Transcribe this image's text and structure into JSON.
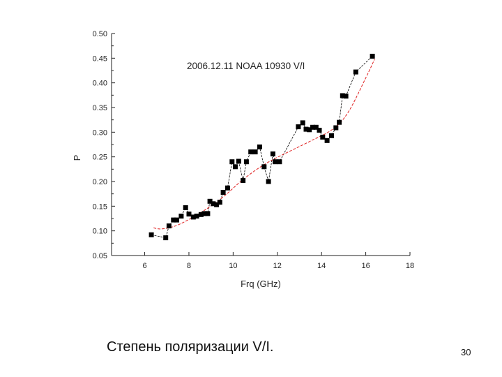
{
  "slide": {
    "caption": "Степень поляризации V/I.",
    "page_number": "30"
  },
  "chart_data": {
    "type": "scatter",
    "title": "2006.12.11 NOAA 10930 V/I",
    "xlabel": "Frq (GHz)",
    "ylabel": "P",
    "xlim": [
      4.5,
      18
    ],
    "ylim": [
      0.05,
      0.5
    ],
    "xticks": [
      "6",
      "8",
      "10",
      "12",
      "14",
      "16",
      "18"
    ],
    "yticks": [
      "0.05",
      "0.10",
      "0.15",
      "0.20",
      "0.25",
      "0.30",
      "0.35",
      "0.40",
      "0.45",
      "0.50"
    ],
    "grid": false,
    "colors": {
      "points": "#000000",
      "connect": "#000000",
      "fit": "#e02020"
    },
    "series": [
      {
        "x": [
          6.3,
          6.95,
          7.1,
          7.3,
          7.45,
          7.65,
          7.85,
          8.0,
          8.2,
          8.35,
          8.55,
          8.7,
          8.85,
          8.95,
          9.1,
          9.25,
          9.4,
          9.55,
          9.75,
          9.95,
          10.1,
          10.25,
          10.45,
          10.6,
          10.8,
          11.0,
          11.2,
          11.4,
          11.6,
          11.8,
          11.9,
          12.1,
          12.95,
          13.15,
          13.3,
          13.45,
          13.6,
          13.75,
          13.9,
          14.05,
          14.25,
          14.45,
          14.65,
          14.8,
          14.95,
          15.1,
          15.55,
          16.3
        ],
        "y": [
          0.092,
          0.086,
          0.11,
          0.122,
          0.122,
          0.13,
          0.147,
          0.134,
          0.128,
          0.13,
          0.133,
          0.135,
          0.135,
          0.16,
          0.155,
          0.153,
          0.158,
          0.178,
          0.187,
          0.24,
          0.23,
          0.241,
          0.202,
          0.24,
          0.26,
          0.26,
          0.27,
          0.23,
          0.2,
          0.256,
          0.24,
          0.24,
          0.311,
          0.319,
          0.306,
          0.305,
          0.31,
          0.31,
          0.304,
          0.29,
          0.283,
          0.293,
          0.309,
          0.32,
          0.374,
          0.373,
          0.422,
          0.454
        ]
      }
    ],
    "fit": {
      "x": [
        6.4,
        6.8,
        7.5,
        8.5,
        9.5,
        10.5,
        11.5,
        12.5,
        13.5,
        14.5,
        15.2,
        16.0,
        16.4
      ],
      "y": [
        0.106,
        0.104,
        0.112,
        0.136,
        0.167,
        0.206,
        0.237,
        0.26,
        0.282,
        0.306,
        0.34,
        0.41,
        0.448
      ]
    }
  }
}
